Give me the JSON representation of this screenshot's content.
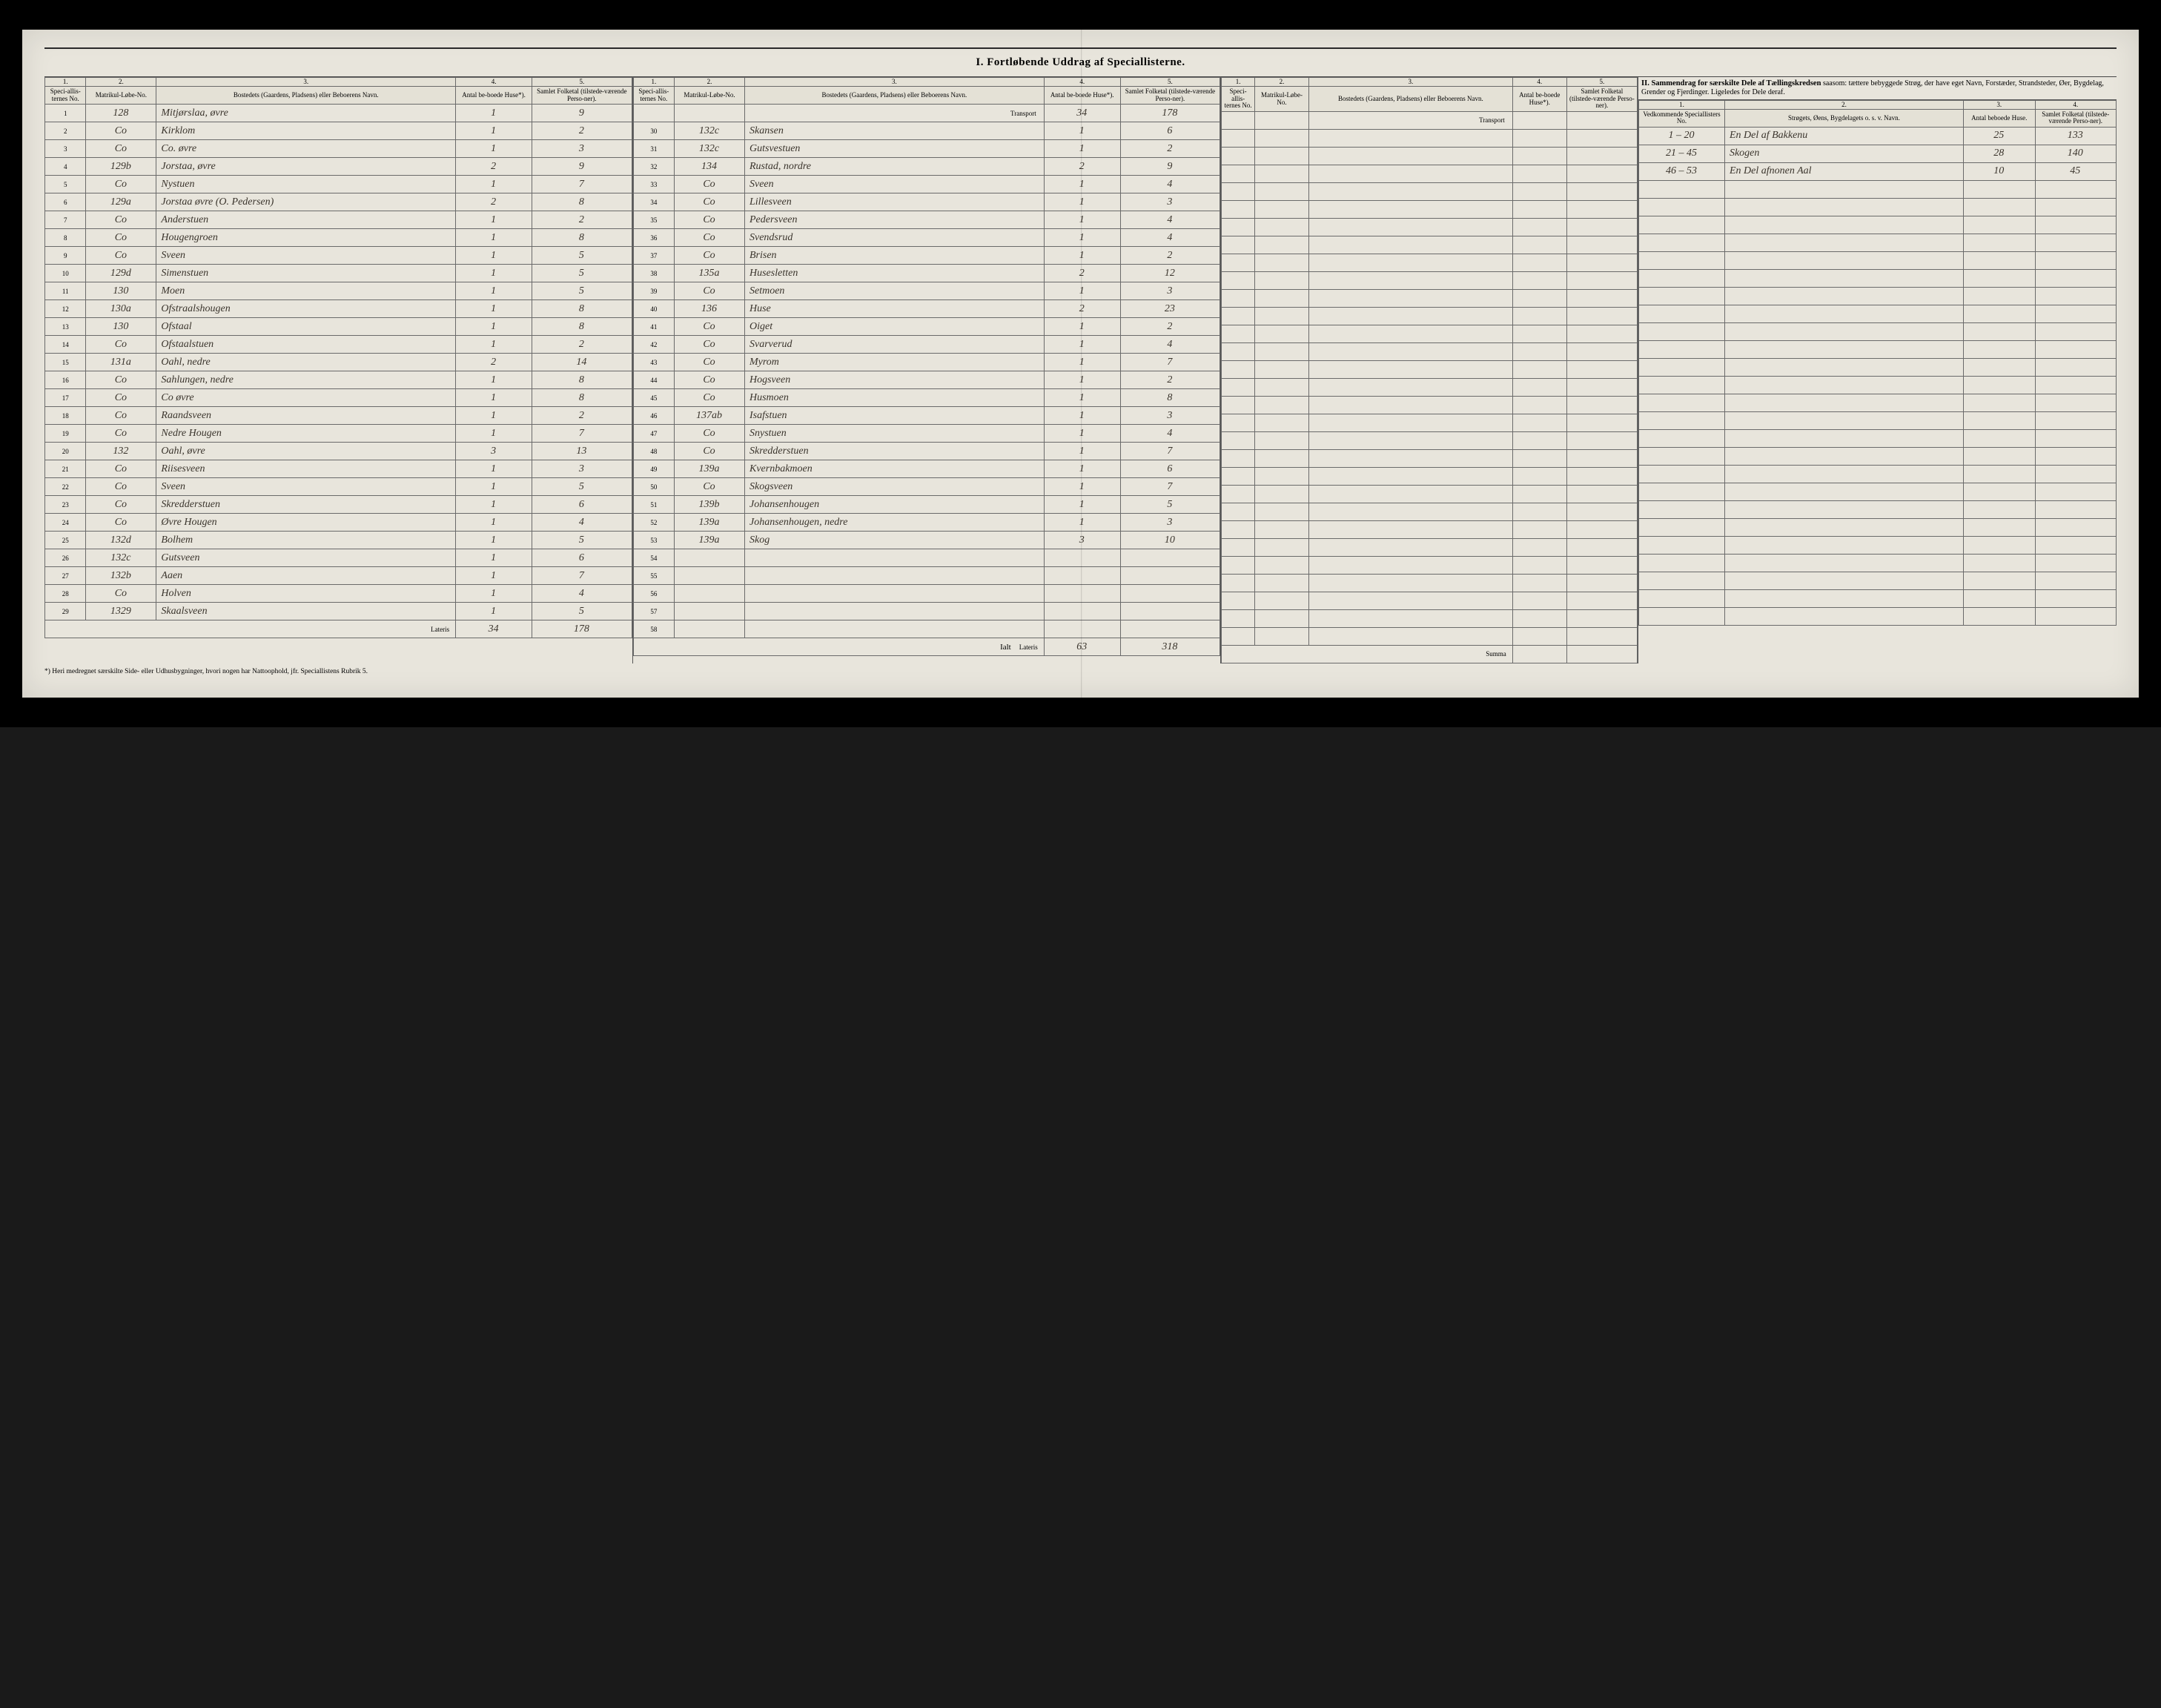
{
  "title": "I. Fortløbende Uddrag af Speciallisterne.",
  "section2_title": "II. Sammendrag for særskilte Dele af Tællingskredsen",
  "section2_sub": "saasom: tættere bebyggede Strøg, der have eget Navn, Forstæder, Strandsteder, Øer, Bygdelag, Grender og Fjerdinger. Ligeledes for Dele deraf.",
  "col_nums": {
    "c1": "1.",
    "c2": "2.",
    "c3": "3.",
    "c4": "4.",
    "c5": "5."
  },
  "headers": {
    "spec_no": "Speci-allis-ternes No.",
    "matr": "Matrikul-Løbe-No.",
    "bosted": "Bostedets (Gaardens, Pladsens) eller Beboerens Navn.",
    "huse": "Antal be-boede Huse*).",
    "folketal": "Samlet Folketal (tilstede-værende Perso-ner).",
    "vedk": "Vedkommende Speciallisters No.",
    "strog": "Strøgets, Øens, Bygdelagets o. s. v. Navn.",
    "antal_huse2": "Antal beboede Huse.",
    "folketal2": "Samlet Folketal (tilstede-værende Perso-ner)."
  },
  "transport": "Transport",
  "lateris": "Lateris",
  "ialt": "Ialt",
  "summa": "Summa",
  "footnote": "*) Heri medregnet særskilte Side- eller Udhusbygninger, hvori nogen har Nattoophold, jfr. Speciallistens Rubrik 5.",
  "left_rows": [
    {
      "n": "1",
      "m": "128",
      "name": "Mitjørslaa, øvre",
      "h": "1",
      "f": "9"
    },
    {
      "n": "2",
      "m": "Co",
      "name": "Kirklom",
      "h": "1",
      "f": "2"
    },
    {
      "n": "3",
      "m": "Co",
      "name": "Co.     øvre",
      "h": "1",
      "f": "3"
    },
    {
      "n": "4",
      "m": "129b",
      "name": "Jorstaa, øvre",
      "h": "2",
      "f": "9"
    },
    {
      "n": "5",
      "m": "Co",
      "name": "Nystuen",
      "h": "1",
      "f": "7"
    },
    {
      "n": "6",
      "m": "129a",
      "name": "Jorstaa øvre (O. Pedersen)",
      "h": "2",
      "f": "8"
    },
    {
      "n": "7",
      "m": "Co",
      "name": "Anderstuen",
      "h": "1",
      "f": "2"
    },
    {
      "n": "8",
      "m": "Co",
      "name": "Hougengroen",
      "h": "1",
      "f": "8"
    },
    {
      "n": "9",
      "m": "Co",
      "name": "Sveen",
      "h": "1",
      "f": "5"
    },
    {
      "n": "10",
      "m": "129d",
      "name": "Simenstuen",
      "h": "1",
      "f": "5"
    },
    {
      "n": "11",
      "m": "130",
      "name": "Moen",
      "h": "1",
      "f": "5"
    },
    {
      "n": "12",
      "m": "130a",
      "name": "Ofstraalshougen",
      "h": "1",
      "f": "8"
    },
    {
      "n": "13",
      "m": "130",
      "name": "Ofstaal",
      "h": "1",
      "f": "8"
    },
    {
      "n": "14",
      "m": "Co",
      "name": "Ofstaalstuen",
      "h": "1",
      "f": "2"
    },
    {
      "n": "15",
      "m": "131a",
      "name": "Oahl, nedre",
      "h": "2",
      "f": "14"
    },
    {
      "n": "16",
      "m": "Co",
      "name": "Sahlungen, nedre",
      "h": "1",
      "f": "8"
    },
    {
      "n": "17",
      "m": "Co",
      "name": "Co     øvre",
      "h": "1",
      "f": "8"
    },
    {
      "n": "18",
      "m": "Co",
      "name": "Raandsveen",
      "h": "1",
      "f": "2"
    },
    {
      "n": "19",
      "m": "Co",
      "name": "Nedre Hougen",
      "h": "1",
      "f": "7"
    },
    {
      "n": "20",
      "m": "132",
      "name": "Oahl, øvre",
      "h": "3",
      "f": "13"
    },
    {
      "n": "21",
      "m": "Co",
      "name": "Riisesveen",
      "h": "1",
      "f": "3"
    },
    {
      "n": "22",
      "m": "Co",
      "name": "Sveen",
      "h": "1",
      "f": "5"
    },
    {
      "n": "23",
      "m": "Co",
      "name": "Skredderstuen",
      "h": "1",
      "f": "6"
    },
    {
      "n": "24",
      "m": "Co",
      "name": "Øvre Hougen",
      "h": "1",
      "f": "4"
    },
    {
      "n": "25",
      "m": "132d",
      "name": "Bolhem",
      "h": "1",
      "f": "5"
    },
    {
      "n": "26",
      "m": "132c",
      "name": "Gutsveen",
      "h": "1",
      "f": "6"
    },
    {
      "n": "27",
      "m": "132b",
      "name": "Aaen",
      "h": "1",
      "f": "7"
    },
    {
      "n": "28",
      "m": "Co",
      "name": "Holven",
      "h": "1",
      "f": "4"
    },
    {
      "n": "29",
      "m": "1329",
      "name": "Skaalsveen",
      "h": "1",
      "f": "5"
    }
  ],
  "left_lateris": {
    "h": "34",
    "f": "178"
  },
  "mid_transport": {
    "h": "34",
    "f": "178"
  },
  "mid_rows": [
    {
      "n": "30",
      "m": "132c",
      "name": "Skansen",
      "h": "1",
      "f": "6"
    },
    {
      "n": "31",
      "m": "132c",
      "name": "Gutsvestuen",
      "h": "1",
      "f": "2"
    },
    {
      "n": "32",
      "m": "134",
      "name": "Rustad, nordre",
      "h": "2",
      "f": "9"
    },
    {
      "n": "33",
      "m": "Co",
      "name": "Sveen",
      "h": "1",
      "f": "4"
    },
    {
      "n": "34",
      "m": "Co",
      "name": "Lillesveen",
      "h": "1",
      "f": "3"
    },
    {
      "n": "35",
      "m": "Co",
      "name": "Pedersveen",
      "h": "1",
      "f": "4"
    },
    {
      "n": "36",
      "m": "Co",
      "name": "Svendsrud",
      "h": "1",
      "f": "4"
    },
    {
      "n": "37",
      "m": "Co",
      "name": "Brisen",
      "h": "1",
      "f": "2"
    },
    {
      "n": "38",
      "m": "135a",
      "name": "Husesletten",
      "h": "2",
      "f": "12"
    },
    {
      "n": "39",
      "m": "Co",
      "name": "Setmoen",
      "h": "1",
      "f": "3"
    },
    {
      "n": "40",
      "m": "136",
      "name": "Huse",
      "h": "2",
      "f": "23"
    },
    {
      "n": "41",
      "m": "Co",
      "name": "Oiget",
      "h": "1",
      "f": "2"
    },
    {
      "n": "42",
      "m": "Co",
      "name": "Svarverud",
      "h": "1",
      "f": "4"
    },
    {
      "n": "43",
      "m": "Co",
      "name": "Myrom",
      "h": "1",
      "f": "7"
    },
    {
      "n": "44",
      "m": "Co",
      "name": "Hogsveen",
      "h": "1",
      "f": "2"
    },
    {
      "n": "45",
      "m": "Co",
      "name": "Husmoen",
      "h": "1",
      "f": "8"
    },
    {
      "n": "46",
      "m": "137ab",
      "name": "Isafstuen",
      "h": "1",
      "f": "3"
    },
    {
      "n": "47",
      "m": "Co",
      "name": "Snystuen",
      "h": "1",
      "f": "4"
    },
    {
      "n": "48",
      "m": "Co",
      "name": "Skredderstuen",
      "h": "1",
      "f": "7"
    },
    {
      "n": "49",
      "m": "139a",
      "name": "Kvernbakmoen",
      "h": "1",
      "f": "6"
    },
    {
      "n": "50",
      "m": "Co",
      "name": "Skogsveen",
      "h": "1",
      "f": "7"
    },
    {
      "n": "51",
      "m": "139b",
      "name": "Johansenhougen",
      "h": "1",
      "f": "5"
    },
    {
      "n": "52",
      "m": "139a",
      "name": "Johansenhougen, nedre",
      "h": "1",
      "f": "3"
    },
    {
      "n": "53",
      "m": "139a",
      "name": "Skog",
      "h": "3",
      "f": "10"
    },
    {
      "n": "54",
      "m": "",
      "name": "",
      "h": "",
      "f": ""
    },
    {
      "n": "55",
      "m": "",
      "name": "",
      "h": "",
      "f": ""
    },
    {
      "n": "56",
      "m": "",
      "name": "",
      "h": "",
      "f": ""
    },
    {
      "n": "57",
      "m": "",
      "name": "",
      "h": "",
      "f": ""
    },
    {
      "n": "58",
      "m": "",
      "name": "",
      "h": "",
      "f": ""
    }
  ],
  "mid_lateris": {
    "h": "63",
    "f": "318"
  },
  "right_rows": [
    {
      "v": "1 – 20",
      "s": "En Del af Bakkenu",
      "h": "25",
      "f": "133"
    },
    {
      "v": "21 – 45",
      "s": "Skogen",
      "h": "28",
      "f": "140"
    },
    {
      "v": "46 – 53",
      "s": "En Del afnonen Aal",
      "h": "10",
      "f": "45"
    }
  ],
  "colors": {
    "paper": "#e8e5dc",
    "ink": "#2a2a2a",
    "handink": "#3a342c",
    "rule": "#6a6a6a"
  }
}
